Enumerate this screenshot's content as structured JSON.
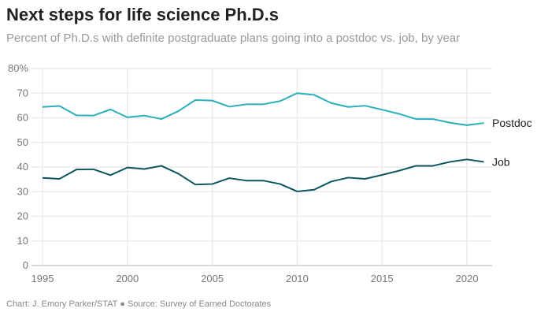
{
  "chart_data": {
    "type": "line",
    "title": "Next steps for life science Ph.D.s",
    "subtitle": "Percent of Ph.D.s with definite postgraduate plans going into a postdoc vs. job, by year",
    "footer": "Chart: J. Emory Parker/STAT ● Source: Survey of Earned Doctorates",
    "x": [
      1995,
      1996,
      1997,
      1998,
      1999,
      2000,
      2001,
      2002,
      2003,
      2004,
      2005,
      2006,
      2007,
      2008,
      2009,
      2010,
      2011,
      2012,
      2013,
      2014,
      2015,
      2016,
      2017,
      2018,
      2019,
      2020,
      2021
    ],
    "series": [
      {
        "name": "Postdoc",
        "color": "#2aaeba",
        "values": [
          64.4,
          64.8,
          61,
          60.9,
          63.4,
          60.2,
          60.9,
          59.5,
          62.7,
          67.2,
          67,
          64.5,
          65.5,
          65.5,
          66.8,
          70,
          69.3,
          66,
          64.4,
          64.9,
          63.3,
          61.6,
          59.5,
          59.5,
          58,
          57,
          57.9
        ]
      },
      {
        "name": "Job",
        "color": "#0b5560",
        "values": [
          35.6,
          35.2,
          39,
          39.1,
          36.7,
          39.8,
          39.2,
          40.5,
          37.3,
          32.9,
          33.1,
          35.5,
          34.5,
          34.5,
          33.1,
          30.1,
          30.8,
          34.1,
          35.7,
          35.2,
          36.8,
          38.5,
          40.5,
          40.5,
          42.1,
          43.1,
          42.1
        ]
      }
    ],
    "xticks": [
      "1995",
      "2000",
      "2005",
      "2010",
      "2015",
      "2020"
    ],
    "yticks": [
      "0",
      "10",
      "20",
      "30",
      "40",
      "50",
      "60",
      "70",
      "80%"
    ],
    "ylim": [
      0,
      80
    ],
    "xlim": [
      1995,
      2021
    ],
    "grid": true,
    "legend": "inline-right"
  }
}
